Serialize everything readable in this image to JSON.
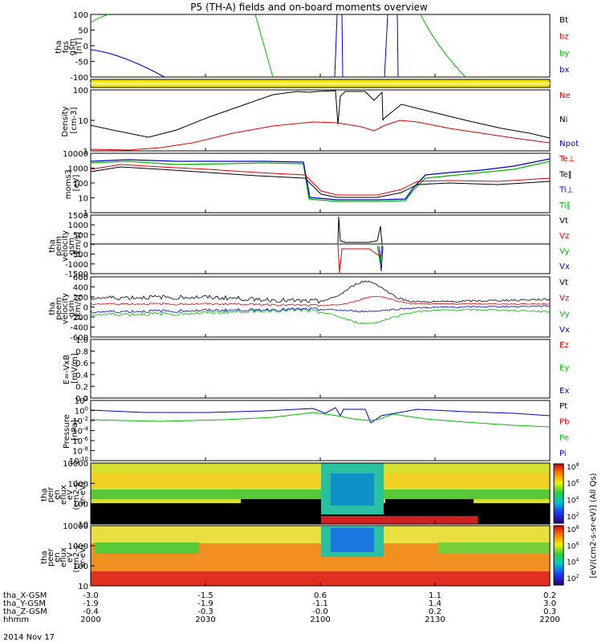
{
  "chart_data": {
    "type": "line",
    "title": "P5 (TH-A) fields and on-board moments overview",
    "date": "2014 Nov 17",
    "x_ticks": [
      "2000",
      "2030",
      "2100",
      "2130",
      "2200"
    ],
    "ephemeris": [
      {
        "label": "tha_X-GSM",
        "values": [
          "-3.0",
          "-1.5",
          "0.6",
          "1.1",
          "0.2"
        ]
      },
      {
        "label": "tha_Y-GSM",
        "values": [
          "-1.9",
          "-1.9",
          "-1.1",
          "1.4",
          "3.0"
        ]
      },
      {
        "label": "tha_Z-GSM",
        "values": [
          "-0.4",
          "-0.3",
          "-0.0",
          "0.2",
          "0.3"
        ]
      },
      {
        "label": "hhmm",
        "values": [
          "2000",
          "2030",
          "2100",
          "2130",
          "2200"
        ]
      }
    ],
    "colorbar_title": "[eV/(cm2-s-sr-eV)] (All Qs)",
    "panels": [
      {
        "id": "fgs",
        "ylabel": [
          "tha",
          "fgs",
          "gsm",
          "[nT]"
        ],
        "yticks": [
          "100",
          "50",
          "0",
          "-50",
          "-100"
        ],
        "legend": [
          {
            "name": "Bt",
            "color": "#000000"
          },
          {
            "name": "bz",
            "color": "#dd0000"
          },
          {
            "name": "by",
            "color": "#00bb00"
          },
          {
            "name": "bx",
            "color": "#0000cc"
          }
        ]
      },
      {
        "id": "density",
        "ylabel": [
          "Density",
          "[cm-3]"
        ],
        "yticks": [
          "100",
          "10",
          "1"
        ],
        "legend": [
          {
            "name": "Ne",
            "color": "#dd0000"
          },
          {
            "name": "Ni",
            "color": "#000000"
          },
          {
            "name": "Npot",
            "color": "#0000cc"
          }
        ]
      },
      {
        "id": "temp",
        "ylabel": [
          "moms3",
          "[eV]"
        ],
        "yticks": [
          "10000",
          "1000",
          "100",
          "10",
          "1"
        ],
        "legend": [
          {
            "name": "Te⊥",
            "color": "#dd0000"
          },
          {
            "name": "Te‖",
            "color": "#000000"
          },
          {
            "name": "Ti⊥",
            "color": "#0000cc"
          },
          {
            "name": "Ti‖",
            "color": "#00bb00"
          }
        ]
      },
      {
        "id": "peim",
        "ylabel": [
          "tha",
          "peim",
          "velocity",
          "gsm",
          "[km/s]"
        ],
        "yticks": [
          "1500",
          "1000",
          "500",
          "0",
          "-500",
          "-1000",
          "-1500"
        ],
        "legend": [
          {
            "name": "Vt",
            "color": "#000000"
          },
          {
            "name": "Vz",
            "color": "#dd0000"
          },
          {
            "name": "Vy",
            "color": "#00bb00"
          },
          {
            "name": "Vx",
            "color": "#0000cc"
          }
        ]
      },
      {
        "id": "peem",
        "ylabel": [
          "tha",
          "peem",
          "velocity",
          "gsm",
          "[km/s]"
        ],
        "yticks": [
          "600",
          "400",
          "200",
          "0",
          "-200",
          "-400",
          "-600"
        ],
        "legend": [
          {
            "name": "Vt",
            "color": "#000000"
          },
          {
            "name": "Vz",
            "color": "#dd0000"
          },
          {
            "name": "Vy",
            "color": "#00bb00"
          },
          {
            "name": "Vx",
            "color": "#0000cc"
          }
        ]
      },
      {
        "id": "efield",
        "ylabel": [
          "E=-VxB",
          "[mV/m]"
        ],
        "yticks": [
          "1.0",
          "0.8",
          "0.6",
          "0.4",
          "0.2",
          "0.0"
        ],
        "legend": [
          {
            "name": "Ez",
            "color": "#dd0000"
          },
          {
            "name": "Ey",
            "color": "#00bb00"
          },
          {
            "name": "Ex",
            "color": "#0000cc"
          }
        ]
      },
      {
        "id": "pressure",
        "ylabel": [
          "Pressure",
          "[nPa]"
        ],
        "yticks": [
          "10^2",
          "10^0",
          "10^-2",
          "10^-4",
          "10^-6",
          "10^-8",
          "10^-10"
        ],
        "legend": [
          {
            "name": "Pt",
            "color": "#000000"
          },
          {
            "name": "Pb",
            "color": "#dd0000"
          },
          {
            "name": "Pe",
            "color": "#00bb00"
          },
          {
            "name": "Pi",
            "color": "#0000cc"
          }
        ]
      },
      {
        "id": "peir",
        "ylabel": [
          "tha",
          "peir",
          "en",
          "eflux",
          "eV",
          "(cm2-s-",
          "sr-eV)"
        ],
        "yticks": [
          "10000",
          "1000",
          "100",
          "10"
        ],
        "cbar_ticks": [
          "10^8",
          "10^6",
          "10^4",
          "10^2"
        ]
      },
      {
        "id": "peer",
        "ylabel": [
          "tha",
          "peer",
          "en",
          "eflux",
          "eV",
          "(cm2-s-",
          "sr-eV)"
        ],
        "yticks": [
          "10000",
          "1000",
          "100",
          "10"
        ],
        "cbar_ticks": [
          "10^8",
          "10^6",
          "10^4",
          "10^2"
        ]
      }
    ]
  }
}
